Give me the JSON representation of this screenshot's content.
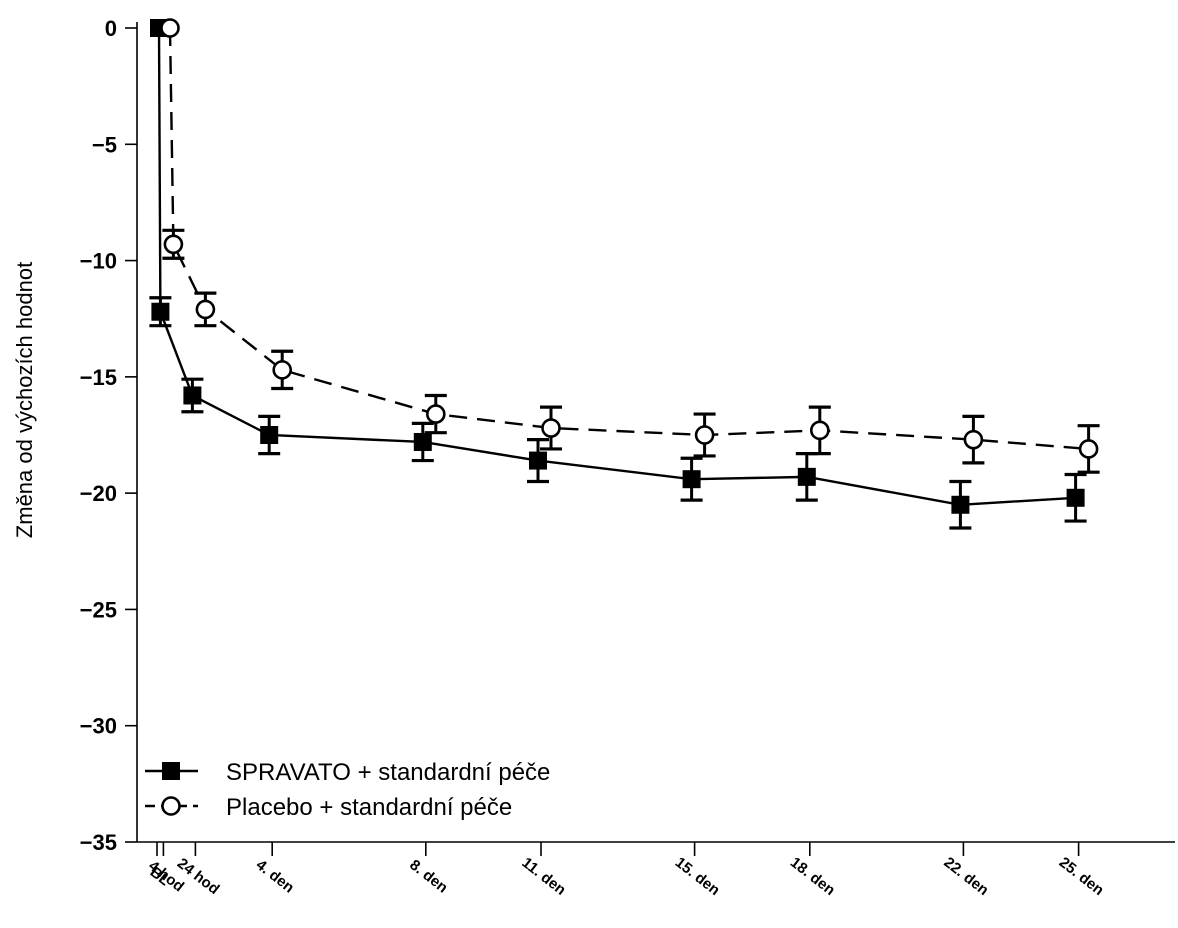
{
  "chart_data": {
    "type": "line",
    "title": "",
    "xlabel": "",
    "ylabel": "Změna od výchozích hodnot",
    "ylim": [
      -35,
      0
    ],
    "yticks": [
      0,
      -5,
      -10,
      -15,
      -20,
      -25,
      -30,
      -35
    ],
    "grid": false,
    "legend_position": "bottom-left",
    "x_hours": [
      0,
      4,
      24,
      72,
      168,
      240,
      336,
      408,
      504,
      576
    ],
    "categories": [
      "BL",
      "4 hod",
      "24 hod",
      "4. den",
      "8. den",
      "11. den",
      "15. den",
      "18. den",
      "22. den",
      "25. den"
    ],
    "series": [
      {
        "name": "SPRAVATO + standardní péče",
        "marker": "filled-square",
        "line_style": "solid",
        "color": "#000000",
        "values": [
          0,
          -12.2,
          -15.8,
          -17.5,
          -17.8,
          -18.6,
          -19.4,
          -19.3,
          -20.5,
          -20.2
        ],
        "error": [
          0,
          0.6,
          0.7,
          0.8,
          0.8,
          0.9,
          0.9,
          1.0,
          1.0,
          1.0
        ]
      },
      {
        "name": "Placebo + standardní péče",
        "marker": "open-circle",
        "line_style": "dashed",
        "color": "#000000",
        "values": [
          0,
          -9.3,
          -12.1,
          -14.7,
          -16.6,
          -17.2,
          -17.5,
          -17.3,
          -17.7,
          -18.1
        ],
        "error": [
          0,
          0.6,
          0.7,
          0.8,
          0.8,
          0.9,
          0.9,
          1.0,
          1.0,
          1.0
        ]
      }
    ]
  }
}
